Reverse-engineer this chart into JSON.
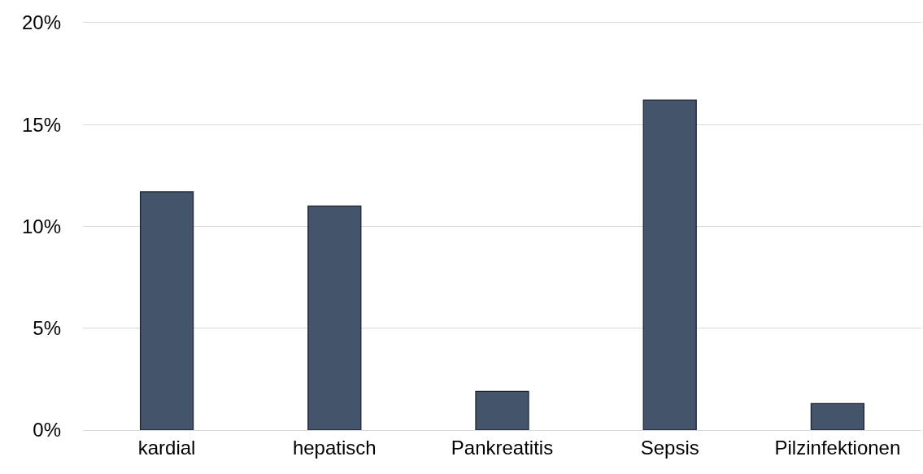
{
  "chart_data": {
    "type": "bar",
    "categories": [
      "kardial",
      "hepatisch",
      "Pankreatitis",
      "Sepsis",
      "Pilzinfektionen"
    ],
    "values": [
      11.7,
      11.0,
      1.9,
      16.2,
      1.3
    ],
    "color": "#44546a",
    "ylim": [
      0,
      20
    ],
    "yticks": [
      {
        "value": 0,
        "label": "0%"
      },
      {
        "value": 5,
        "label": "5%"
      },
      {
        "value": 10,
        "label": "10%"
      },
      {
        "value": 15,
        "label": "15%"
      },
      {
        "value": 20,
        "label": "20%"
      }
    ],
    "grid": "y",
    "legend": false
  }
}
